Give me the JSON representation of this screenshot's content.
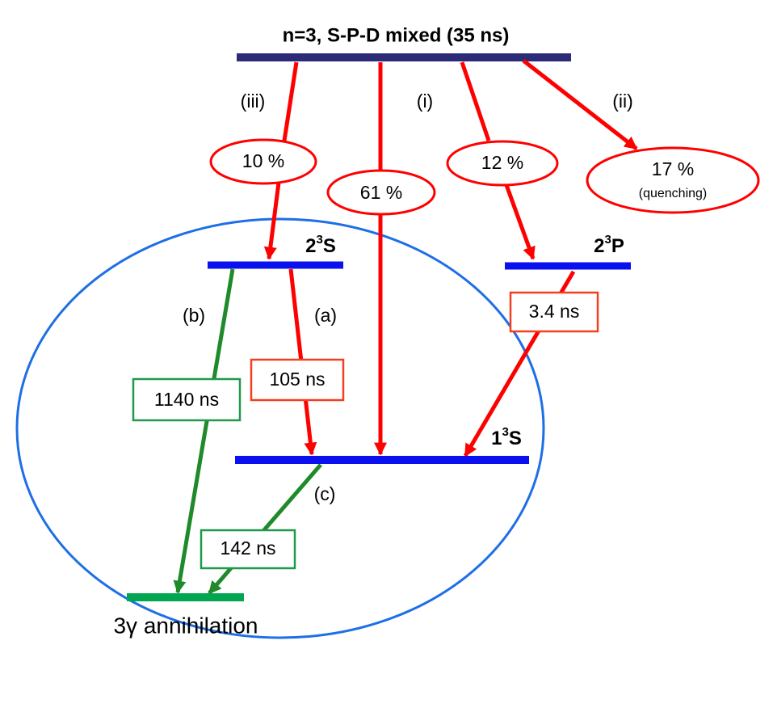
{
  "top_level": "n=3, S-P-D mixed (35 ns)",
  "branches": [
    {
      "tag": "(iii)",
      "fraction": "10 %"
    },
    {
      "tag": "(i)",
      "fraction": "61 %"
    },
    {
      "fraction": "12 %"
    },
    {
      "tag": "(ii)",
      "fraction": "17 %",
      "note": "(quenching)"
    }
  ],
  "levels": [
    {
      "n": "2",
      "sup": "3",
      "term": "S"
    },
    {
      "n": "2",
      "sup": "3",
      "term": "P"
    },
    {
      "n": "1",
      "sup": "3",
      "term": "S"
    }
  ],
  "decays": [
    {
      "tag": "(b)",
      "lifetime": "1140 ns"
    },
    {
      "tag": "(a)",
      "lifetime": "105 ns"
    },
    {
      "lifetime": "3.4 ns"
    },
    {
      "tag": "(c)",
      "lifetime": "142 ns"
    }
  ],
  "final_state": "3γ annihilation"
}
